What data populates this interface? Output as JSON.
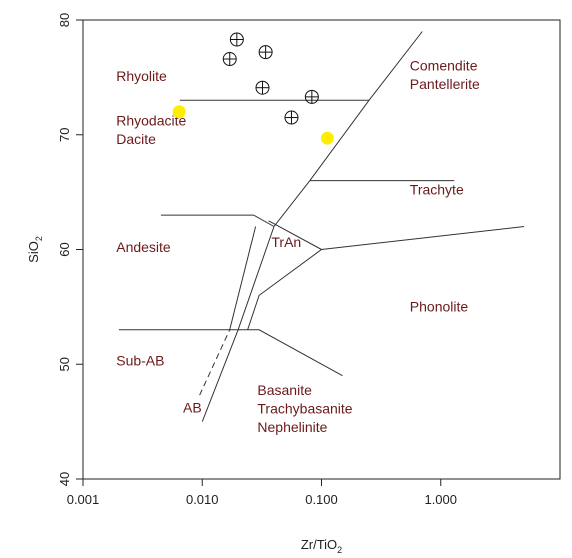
{
  "chart_data": {
    "type": "scatter",
    "title": "",
    "xlabel": {
      "main": "Zr/TiO",
      "sub": "2"
    },
    "ylabel": {
      "main": "SiO",
      "sub": "2"
    },
    "xscale": "log",
    "xlim": [
      0.001,
      10
    ],
    "ylim": [
      40,
      80
    ],
    "xticks": [
      {
        "value": 0.001,
        "label": "0.001"
      },
      {
        "value": 0.01,
        "label": "0.010"
      },
      {
        "value": 0.1,
        "label": "0.100"
      },
      {
        "value": 1,
        "label": "1.000"
      }
    ],
    "yticks": [
      {
        "value": 40,
        "label": "40"
      },
      {
        "value": 50,
        "label": "50"
      },
      {
        "value": 60,
        "label": "60"
      },
      {
        "value": 70,
        "label": "70"
      },
      {
        "value": 80,
        "label": "80"
      }
    ],
    "grid": false,
    "colors": {
      "field_label": "#6b1a1a",
      "line": "#333333",
      "highlight": "#ffee00"
    },
    "series": [
      {
        "marker": "circle-plus",
        "points": [
          {
            "x": 0.017,
            "y": 76.6
          },
          {
            "x": 0.0195,
            "y": 78.3
          },
          {
            "x": 0.034,
            "y": 77.2
          },
          {
            "x": 0.032,
            "y": 74.1
          },
          {
            "x": 0.083,
            "y": 73.3
          },
          {
            "x": 0.056,
            "y": 71.5
          }
        ]
      },
      {
        "marker": "filled-circle",
        "color": "#ffee00",
        "points": [
          {
            "x": 0.0064,
            "y": 72.0
          },
          {
            "x": 0.112,
            "y": 69.7
          }
        ]
      }
    ],
    "boundaries": [
      {
        "style": "solid",
        "points": [
          [
            0.01,
            45
          ],
          [
            0.02,
            53
          ],
          [
            0.04,
            62
          ],
          [
            0.08,
            66
          ],
          [
            0.25,
            73
          ],
          [
            0.7,
            79
          ]
        ]
      },
      {
        "style": "solid",
        "points": [
          [
            0.0065,
            73
          ],
          [
            0.25,
            73
          ]
        ]
      },
      {
        "style": "solid",
        "points": [
          [
            0.08,
            66
          ],
          [
            1.3,
            66
          ]
        ]
      },
      {
        "style": "solid",
        "points": [
          [
            0.0045,
            63
          ],
          [
            0.027,
            63
          ],
          [
            0.04,
            62
          ]
        ]
      },
      {
        "style": "solid",
        "points": [
          [
            0.017,
            53
          ],
          [
            0.028,
            62
          ]
        ]
      },
      {
        "style": "solid",
        "points": [
          [
            0.024,
            53
          ],
          [
            0.03,
            56
          ],
          [
            0.1,
            60
          ],
          [
            5,
            62
          ]
        ]
      },
      {
        "style": "solid",
        "points": [
          [
            0.1,
            60
          ],
          [
            0.036,
            62.5
          ]
        ]
      },
      {
        "style": "solid",
        "points": [
          [
            0.002,
            53
          ],
          [
            0.03,
            53
          ],
          [
            0.15,
            49
          ]
        ]
      },
      {
        "style": "dashed",
        "points": [
          [
            0.0095,
            47.3
          ],
          [
            0.017,
            53
          ]
        ]
      }
    ],
    "annotations": [
      {
        "text": "Rhyolite",
        "x": 0.0019,
        "y": 74.7
      },
      {
        "text": "Rhyodacite",
        "x": 0.0019,
        "y": 70.8
      },
      {
        "text": "Dacite",
        "x": 0.0019,
        "y": 69.2
      },
      {
        "text": "Comendite",
        "x": 0.55,
        "y": 75.6
      },
      {
        "text": "Pantellerite",
        "x": 0.55,
        "y": 74.0
      },
      {
        "text": "Trachyte",
        "x": 0.55,
        "y": 64.8
      },
      {
        "text": "Andesite",
        "x": 0.0019,
        "y": 59.8
      },
      {
        "text": "TrAn",
        "x": 0.038,
        "y": 60.2
      },
      {
        "text": "Phonolite",
        "x": 0.55,
        "y": 54.6
      },
      {
        "text": "Sub-AB",
        "x": 0.0019,
        "y": 49.9
      },
      {
        "text": "AB",
        "x": 0.0069,
        "y": 45.8
      },
      {
        "text": "Basanite",
        "x": 0.029,
        "y": 47.3
      },
      {
        "text": "Trachybasanite",
        "x": 0.029,
        "y": 45.7
      },
      {
        "text": "Nephelinite",
        "x": 0.029,
        "y": 44.1
      }
    ]
  }
}
